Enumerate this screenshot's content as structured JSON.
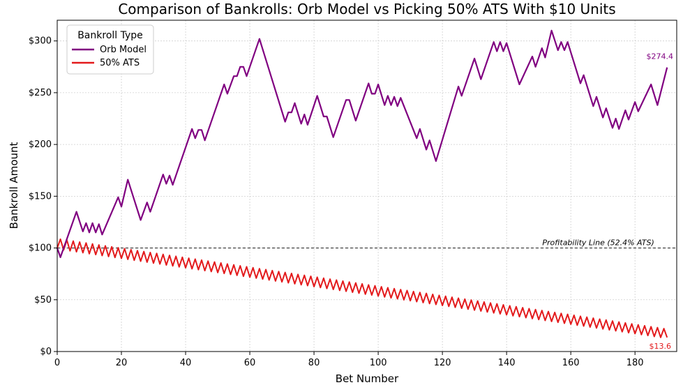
{
  "chart_data": {
    "type": "line",
    "title": "Comparison of Bankrolls: Orb Model vs Picking 50% ATS With $10 Units",
    "xlabel": "Bet Number",
    "ylabel": "Bankroll Amount",
    "xlim": [
      0,
      193
    ],
    "ylim": [
      0,
      320
    ],
    "x_ticks": [
      0,
      20,
      40,
      60,
      80,
      100,
      120,
      140,
      160,
      180
    ],
    "x_tick_labels": [
      "0",
      "20",
      "40",
      "60",
      "80",
      "100",
      "120",
      "140",
      "160",
      "180"
    ],
    "y_ticks": [
      0,
      50,
      100,
      150,
      200,
      250,
      300
    ],
    "y_tick_labels": [
      "$0",
      "$50",
      "$100",
      "$150",
      "$200",
      "$250",
      "$300"
    ],
    "grid": true,
    "legend": {
      "title": "Bankroll Type",
      "placement": "top-left",
      "entries": [
        "Orb Model",
        "50% ATS"
      ]
    },
    "series": [
      {
        "name": "Orb Model",
        "color": "#800080",
        "points": [
          [
            0,
            100
          ],
          [
            1,
            91
          ],
          [
            6,
            135
          ],
          [
            8,
            116
          ],
          [
            9,
            124
          ],
          [
            10,
            115
          ],
          [
            11,
            124
          ],
          [
            12,
            115
          ],
          [
            13,
            123
          ],
          [
            14,
            113
          ],
          [
            19,
            149
          ],
          [
            20,
            140
          ],
          [
            22,
            166
          ],
          [
            26,
            127
          ],
          [
            28,
            144
          ],
          [
            29,
            135
          ],
          [
            33,
            171
          ],
          [
            34,
            162
          ],
          [
            35,
            170
          ],
          [
            36,
            161
          ],
          [
            42,
            215
          ],
          [
            43,
            206
          ],
          [
            44,
            214
          ],
          [
            45,
            214
          ],
          [
            46,
            204
          ],
          [
            52,
            258
          ],
          [
            53,
            249
          ],
          [
            55,
            266
          ],
          [
            56,
            266
          ],
          [
            57,
            275
          ],
          [
            58,
            275
          ],
          [
            59,
            266
          ],
          [
            63,
            302
          ],
          [
            71,
            222
          ],
          [
            72,
            231
          ],
          [
            73,
            231
          ],
          [
            74,
            240
          ],
          [
            76,
            220
          ],
          [
            77,
            229
          ],
          [
            78,
            219
          ],
          [
            81,
            247
          ],
          [
            83,
            227
          ],
          [
            84,
            227
          ],
          [
            86,
            207
          ],
          [
            90,
            243
          ],
          [
            91,
            243
          ],
          [
            93,
            223
          ],
          [
            97,
            259
          ],
          [
            98,
            249
          ],
          [
            99,
            249
          ],
          [
            100,
            258
          ],
          [
            102,
            238
          ],
          [
            103,
            247
          ],
          [
            104,
            238
          ],
          [
            105,
            246
          ],
          [
            106,
            237
          ],
          [
            107,
            245
          ],
          [
            112,
            206
          ],
          [
            113,
            215
          ],
          [
            115,
            195
          ],
          [
            116,
            204
          ],
          [
            118,
            184
          ],
          [
            125,
            256
          ],
          [
            126,
            247
          ],
          [
            130,
            283
          ],
          [
            132,
            263
          ],
          [
            136,
            299
          ],
          [
            137,
            290
          ],
          [
            138,
            299
          ],
          [
            139,
            290
          ],
          [
            140,
            298
          ],
          [
            144,
            258
          ],
          [
            148,
            285
          ],
          [
            149,
            275
          ],
          [
            151,
            293
          ],
          [
            152,
            284
          ],
          [
            154,
            310
          ],
          [
            156,
            291
          ],
          [
            157,
            299
          ],
          [
            158,
            291
          ],
          [
            159,
            299
          ],
          [
            163,
            259
          ],
          [
            164,
            267
          ],
          [
            167,
            237
          ],
          [
            168,
            246
          ],
          [
            170,
            226
          ],
          [
            171,
            235
          ],
          [
            173,
            216
          ],
          [
            174,
            225
          ],
          [
            175,
            215
          ],
          [
            177,
            233
          ],
          [
            178,
            224
          ],
          [
            180,
            241
          ],
          [
            181,
            232
          ],
          [
            185,
            258
          ],
          [
            187,
            238
          ],
          [
            190,
            274.4
          ]
        ]
      },
      {
        "name": "50% ATS",
        "color": "#e31a1c",
        "zigzag": {
          "start": 100,
          "end": 13.6,
          "count": 190,
          "amplitude_start": 10,
          "amplitude_end": 9
        }
      }
    ],
    "annotations": [
      {
        "text": "Profitability Line (52.4% ATS)",
        "y": 100,
        "style": "dashed"
      },
      {
        "text": "$274.4",
        "series": "Orb Model",
        "x": 190,
        "y": 274.4
      },
      {
        "text": "$13.6",
        "series": "50% ATS",
        "x": 190,
        "y": 13.6
      }
    ]
  }
}
